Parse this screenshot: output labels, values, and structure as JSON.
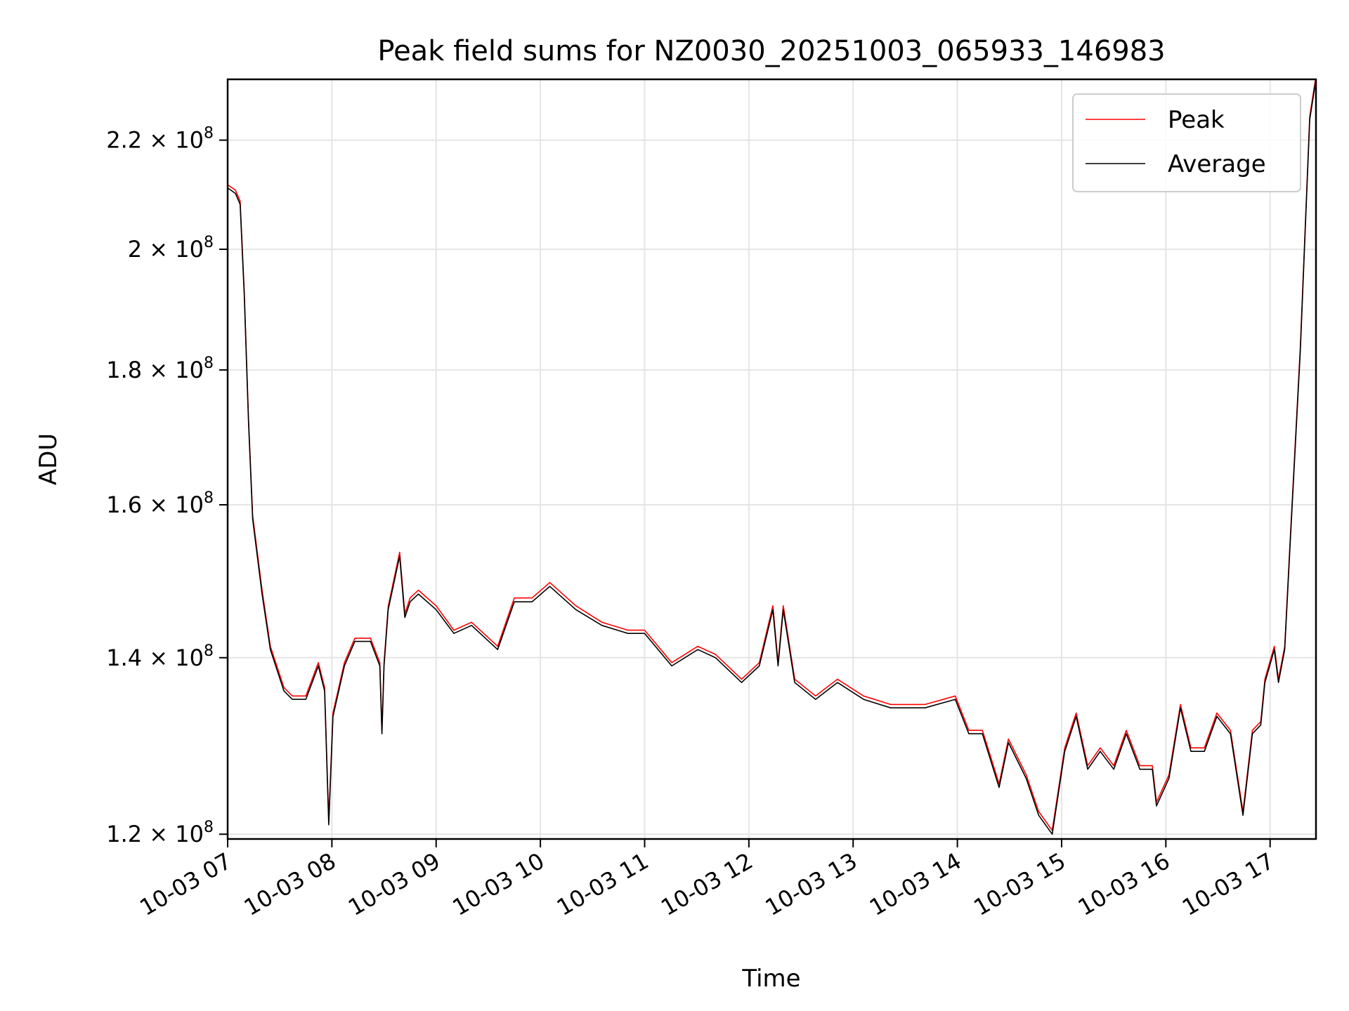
{
  "chart_data": {
    "type": "line",
    "title": "Peak field sums for NZ0030_20251003_065933_146983",
    "xlabel": "Time",
    "ylabel": "ADU",
    "yscale": "log",
    "xlim": [
      7.0,
      17.44
    ],
    "ylim": [
      119500000.0,
      232000000.0
    ],
    "grid": true,
    "legend_position": "top-right",
    "x_ticks": [
      {
        "value": 7,
        "label": "10-03 07"
      },
      {
        "value": 8,
        "label": "10-03 08"
      },
      {
        "value": 9,
        "label": "10-03 09"
      },
      {
        "value": 10,
        "label": "10-03 10"
      },
      {
        "value": 11,
        "label": "10-03 11"
      },
      {
        "value": 12,
        "label": "10-03 12"
      },
      {
        "value": 13,
        "label": "10-03 13"
      },
      {
        "value": 14,
        "label": "10-03 14"
      },
      {
        "value": 15,
        "label": "10-03 15"
      },
      {
        "value": 16,
        "label": "10-03 16"
      },
      {
        "value": 17,
        "label": "10-03 17"
      }
    ],
    "y_ticks": [
      {
        "value": 120000000.0,
        "mantissa": "1.2",
        "base": "× 10",
        "exp": "8"
      },
      {
        "value": 140000000.0,
        "mantissa": "1.4",
        "base": "× 10",
        "exp": "8"
      },
      {
        "value": 160000000.0,
        "mantissa": "1.6",
        "base": "× 10",
        "exp": "8"
      },
      {
        "value": 180000000.0,
        "mantissa": "1.8",
        "base": "× 10",
        "exp": "8"
      },
      {
        "value": 200000000.0,
        "mantissa": "2",
        "base": "× 10",
        "exp": "8"
      },
      {
        "value": 220000000.0,
        "mantissa": "2.2",
        "base": "× 10",
        "exp": "8"
      }
    ],
    "x_unit": "hours of 2025-10-03",
    "x": [
      7.0,
      7.075,
      7.12,
      7.16,
      7.2,
      7.24,
      7.33,
      7.41,
      7.54,
      7.62,
      7.75,
      7.87,
      7.93,
      7.97,
      8.01,
      8.12,
      8.22,
      8.37,
      8.46,
      8.48,
      8.5,
      8.54,
      8.65,
      8.7,
      8.75,
      8.83,
      9.0,
      9.17,
      9.34,
      9.59,
      9.75,
      9.92,
      10.09,
      10.34,
      10.59,
      10.84,
      11.0,
      11.26,
      11.51,
      11.68,
      11.93,
      12.1,
      12.23,
      12.28,
      12.33,
      12.44,
      12.64,
      12.85,
      13.1,
      13.36,
      13.69,
      13.98,
      14.11,
      14.24,
      14.4,
      14.49,
      14.66,
      14.78,
      14.91,
      15.03,
      15.14,
      15.25,
      15.37,
      15.5,
      15.62,
      15.75,
      15.87,
      15.91,
      16.03,
      16.14,
      16.24,
      16.37,
      16.49,
      16.62,
      16.74,
      16.83,
      16.91,
      16.95,
      17.04,
      17.08,
      17.14,
      17.19,
      17.29,
      17.38,
      17.44
    ],
    "series": [
      {
        "name": "Peak",
        "color": "#ff0000",
        "values": [
          211600000.0,
          210600000.0,
          208600000.0,
          192600000.0,
          172500000.0,
          158500000.0,
          148500000.0,
          141400000.0,
          136400000.0,
          135400000.0,
          135400000.0,
          139400000.0,
          136400000.0,
          121400000.0,
          133400000.0,
          139400000.0,
          142400000.0,
          142400000.0,
          139400000.0,
          131400000.0,
          139400000.0,
          146400000.0,
          153500000.0,
          145500000.0,
          147500000.0,
          148500000.0,
          146500000.0,
          143400000.0,
          144400000.0,
          141400000.0,
          147500000.0,
          147500000.0,
          149500000.0,
          146500000.0,
          144400000.0,
          143400000.0,
          143400000.0,
          139400000.0,
          141400000.0,
          140400000.0,
          137400000.0,
          139400000.0,
          146500000.0,
          139400000.0,
          146500000.0,
          137400000.0,
          135400000.0,
          137400000.0,
          135400000.0,
          134400000.0,
          134400000.0,
          135400000.0,
          131400000.0,
          131400000.0,
          125400000.0,
          130400000.0,
          126400000.0,
          122400000.0,
          120400000.0,
          129400000.0,
          133400000.0,
          127400000.0,
          129400000.0,
          127400000.0,
          131400000.0,
          127400000.0,
          127400000.0,
          123400000.0,
          126400000.0,
          134400000.0,
          129400000.0,
          129400000.0,
          133400000.0,
          131400000.0,
          122400000.0,
          131400000.0,
          132400000.0,
          137400000.0,
          141400000.0,
          137400000.0,
          141400000.0,
          154500000.0,
          183600000.0,
          224600000.0,
          232700000.0
        ]
      },
      {
        "name": "Average",
        "color": "#000000",
        "values": [
          211000000.0,
          210000000.0,
          208000000.0,
          192000000.0,
          172000000.0,
          158000000.0,
          148000000.0,
          141000000.0,
          136000000.0,
          135000000.0,
          135000000.0,
          139000000.0,
          136000000.0,
          121000000.0,
          133000000.0,
          139000000.0,
          142000000.0,
          142000000.0,
          139000000.0,
          131000000.0,
          139000000.0,
          146000000.0,
          153000000.0,
          145000000.0,
          147000000.0,
          148000000.0,
          146000000.0,
          143000000.0,
          144000000.0,
          141000000.0,
          147000000.0,
          147000000.0,
          149000000.0,
          146000000.0,
          144000000.0,
          143000000.0,
          143000000.0,
          139000000.0,
          141000000.0,
          140000000.0,
          137000000.0,
          139000000.0,
          146000000.0,
          139000000.0,
          146000000.0,
          137000000.0,
          135000000.0,
          137000000.0,
          135000000.0,
          134000000.0,
          134000000.0,
          135000000.0,
          131000000.0,
          131000000.0,
          125000000.0,
          130000000.0,
          126000000.0,
          122000000.0,
          120000000.0,
          129000000.0,
          133000000.0,
          127000000.0,
          129000000.0,
          127000000.0,
          131000000.0,
          127000000.0,
          127000000.0,
          123000000.0,
          126000000.0,
          134000000.0,
          129000000.0,
          129000000.0,
          133000000.0,
          131000000.0,
          122000000.0,
          131000000.0,
          132000000.0,
          137000000.0,
          141000000.0,
          137000000.0,
          141000000.0,
          154000000.0,
          183000000.0,
          224000000.0,
          232000000.0
        ]
      }
    ]
  }
}
